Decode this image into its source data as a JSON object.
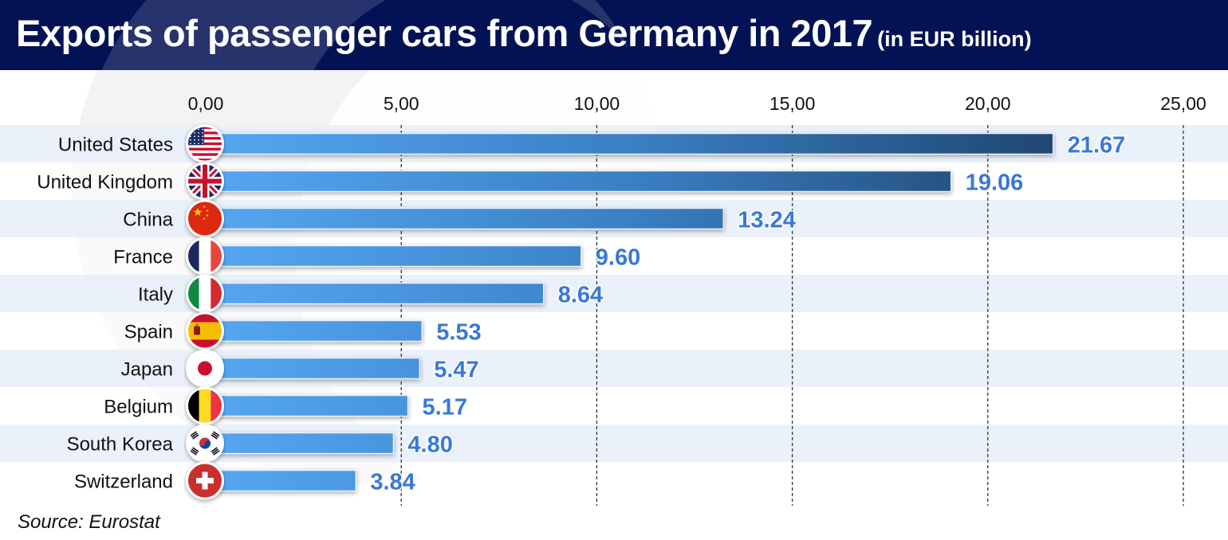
{
  "header": {
    "title": "Exports of passenger cars from Germany in 2017",
    "subtitle": "(in EUR billion)"
  },
  "footer": {
    "source": "Source: Eurostat"
  },
  "colors": {
    "header_bg": "#031255",
    "band_alt": "#e7eef9",
    "bar_start": "#55a7f2",
    "bar_end": "#1f4670",
    "value_label": "#3a78d6",
    "grid": "#333333"
  },
  "chart_data": {
    "type": "bar",
    "orientation": "horizontal",
    "title": "Exports of passenger cars from Germany in 2017",
    "subtitle": "(in EUR billion)",
    "xlabel": "",
    "ylabel": "",
    "xlim": [
      0,
      25
    ],
    "x_ticks": [
      0,
      5,
      10,
      15,
      20,
      25
    ],
    "x_tick_labels": [
      "0,00",
      "5,00",
      "10,00",
      "15,00",
      "20,00",
      "25,00"
    ],
    "x_axis_position": "top",
    "grid": "vertical dashed",
    "categories": [
      "United States",
      "United Kingdom",
      "China",
      "France",
      "Italy",
      "Spain",
      "Japan",
      "Belgium",
      "South Korea",
      "Switzerland"
    ],
    "values": [
      21.67,
      19.06,
      13.24,
      9.6,
      8.64,
      5.53,
      5.47,
      5.17,
      4.8,
      3.84
    ],
    "value_labels": [
      "21.67",
      "19.06",
      "13.24",
      "9.60",
      "8.64",
      "5.53",
      "5.47",
      "5.17",
      "4.80",
      "3.84"
    ],
    "flag_icons": [
      "flag-us-icon",
      "flag-uk-icon",
      "flag-china-icon",
      "flag-france-icon",
      "flag-italy-icon",
      "flag-spain-icon",
      "flag-japan-icon",
      "flag-belgium-icon",
      "flag-south-korea-icon",
      "flag-switzerland-icon"
    ],
    "source": "Source: Eurostat"
  }
}
